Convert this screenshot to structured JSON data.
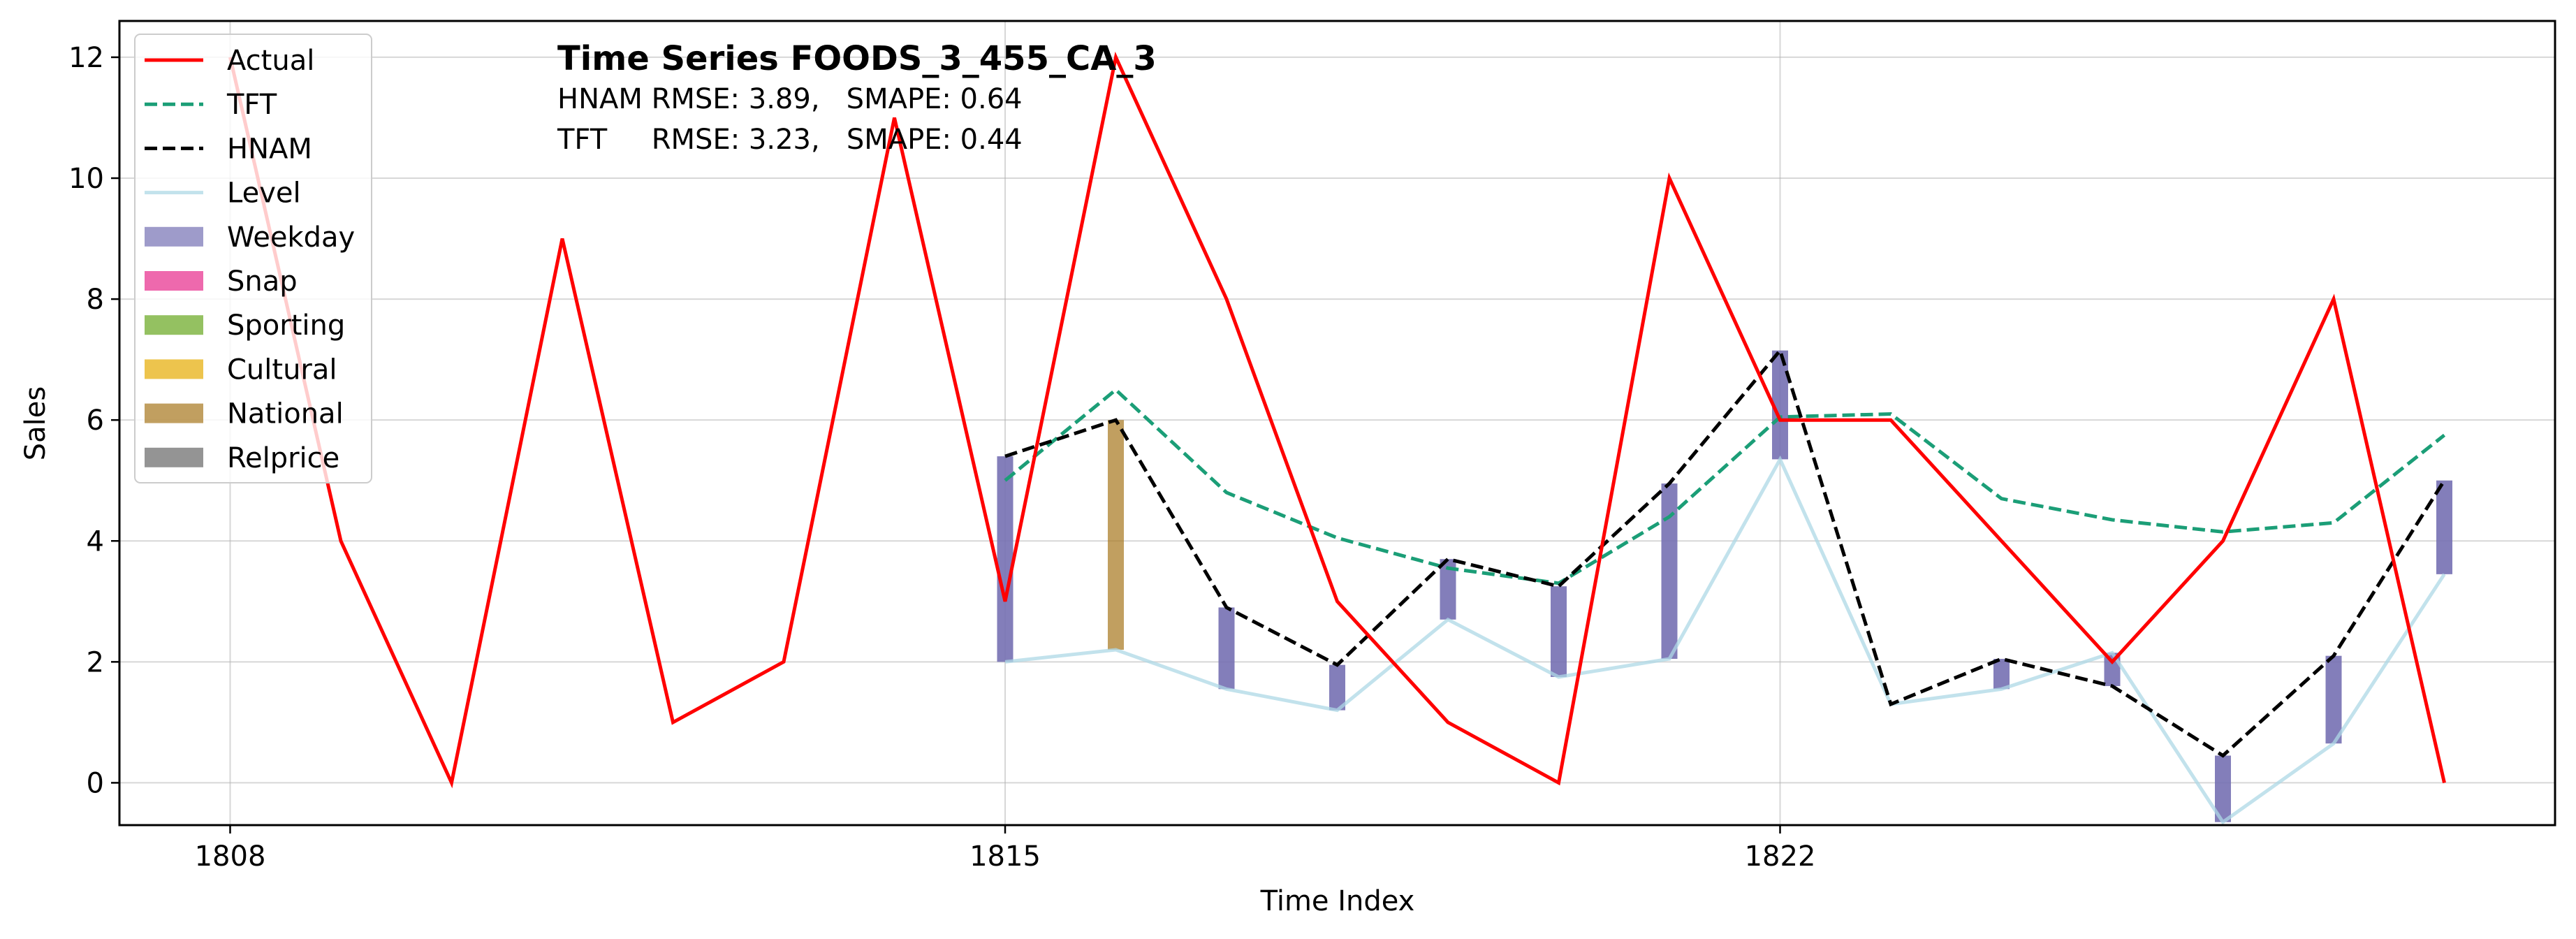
{
  "chart_data": {
    "type": "line",
    "title": "Time Series FOODS_3_455_CA_3",
    "subtitle_lines": [
      "HNAM RMSE: 3.89,   SMAPE: 0.64",
      "TFT     RMSE: 3.23,   SMAPE: 0.44"
    ],
    "xlabel": "Time Index",
    "ylabel": "Sales",
    "xlim": [
      1807,
      1829
    ],
    "ylim": [
      -0.7,
      12.6
    ],
    "x_ticks": [
      1808,
      1815,
      1822
    ],
    "y_ticks": [
      0,
      2,
      4,
      6,
      8,
      10,
      12
    ],
    "grid": true,
    "legend_position": "upper-left",
    "series": [
      {
        "name": "Actual",
        "kind": "line",
        "color": "#ff0000",
        "dash": "solid",
        "x": [
          1808,
          1809,
          1810,
          1811,
          1812,
          1813,
          1814,
          1815,
          1816,
          1817,
          1818,
          1819,
          1820,
          1821,
          1822,
          1823,
          1824,
          1825,
          1826,
          1827,
          1828
        ],
        "y": [
          12,
          4,
          0,
          9,
          1,
          2,
          11,
          3,
          12,
          8,
          3,
          1,
          0,
          10,
          6,
          6,
          4,
          2,
          4,
          8,
          0
        ]
      },
      {
        "name": "TFT",
        "kind": "line",
        "color": "#1b9e77",
        "dash": "dashed",
        "x": [
          1815,
          1816,
          1817,
          1818,
          1819,
          1820,
          1821,
          1822,
          1823,
          1824,
          1825,
          1826,
          1827,
          1828
        ],
        "y": [
          5.0,
          6.5,
          4.8,
          4.05,
          3.55,
          3.3,
          4.4,
          6.05,
          6.1,
          4.7,
          4.35,
          4.15,
          4.3,
          5.75
        ]
      },
      {
        "name": "HNAM",
        "kind": "line",
        "color": "#000000",
        "dash": "dashed",
        "x": [
          1815,
          1816,
          1817,
          1818,
          1819,
          1820,
          1821,
          1822,
          1823,
          1824,
          1825,
          1826,
          1827,
          1828
        ],
        "y": [
          5.4,
          6.0,
          2.9,
          1.95,
          3.7,
          3.25,
          4.95,
          7.15,
          1.3,
          2.05,
          1.6,
          0.45,
          2.1,
          5.0
        ]
      },
      {
        "name": "Level",
        "kind": "line",
        "color": "#add8e6",
        "dash": "solid",
        "x": [
          1815,
          1816,
          1817,
          1818,
          1819,
          1820,
          1821,
          1822,
          1823,
          1824,
          1825,
          1826,
          1827,
          1828
        ],
        "y": [
          2.0,
          2.2,
          1.55,
          1.2,
          2.7,
          1.75,
          2.05,
          5.35,
          1.3,
          1.55,
          2.15,
          -0.65,
          0.65,
          3.45
        ]
      }
    ],
    "bars": [
      {
        "component": "Weekday",
        "x": 1815,
        "from": 2.0,
        "to": 5.4
      },
      {
        "component": "National",
        "x": 1816,
        "from": 2.2,
        "to": 6.0
      },
      {
        "component": "Weekday",
        "x": 1817,
        "from": 1.55,
        "to": 2.9
      },
      {
        "component": "Weekday",
        "x": 1818,
        "from": 1.2,
        "to": 1.95
      },
      {
        "component": "Weekday",
        "x": 1819,
        "from": 2.7,
        "to": 3.7
      },
      {
        "component": "Weekday",
        "x": 1820,
        "from": 1.75,
        "to": 3.25
      },
      {
        "component": "Weekday",
        "x": 1821,
        "from": 2.05,
        "to": 4.95
      },
      {
        "component": "Weekday",
        "x": 1822,
        "from": 5.35,
        "to": 7.15
      },
      {
        "component": "Weekday",
        "x": 1824,
        "from": 1.55,
        "to": 2.05
      },
      {
        "component": "Weekday",
        "x": 1825,
        "from": 1.6,
        "to": 2.15
      },
      {
        "component": "Weekday",
        "x": 1826,
        "from": -0.65,
        "to": 0.45
      },
      {
        "component": "Weekday",
        "x": 1827,
        "from": 0.65,
        "to": 2.1
      },
      {
        "component": "Weekday",
        "x": 1828,
        "from": 3.45,
        "to": 5.0
      }
    ],
    "legend": [
      {
        "label": "Actual",
        "kind": "line",
        "color": "#ff0000",
        "dash": "solid"
      },
      {
        "label": "TFT",
        "kind": "line",
        "color": "#1b9e77",
        "dash": "dashed"
      },
      {
        "label": "HNAM",
        "kind": "line",
        "color": "#000000",
        "dash": "dashed"
      },
      {
        "label": "Level",
        "kind": "line",
        "color": "#add8e6",
        "dash": "solid"
      },
      {
        "label": "Weekday",
        "kind": "patch",
        "color": "#7570b3"
      },
      {
        "label": "Snap",
        "kind": "patch",
        "color": "#e7298a"
      },
      {
        "label": "Sporting",
        "kind": "patch",
        "color": "#66a61e"
      },
      {
        "label": "Cultural",
        "kind": "patch",
        "color": "#e6ab02"
      },
      {
        "label": "National",
        "kind": "patch",
        "color": "#a6761d"
      },
      {
        "label": "Relprice",
        "kind": "patch",
        "color": "#666666"
      }
    ]
  }
}
